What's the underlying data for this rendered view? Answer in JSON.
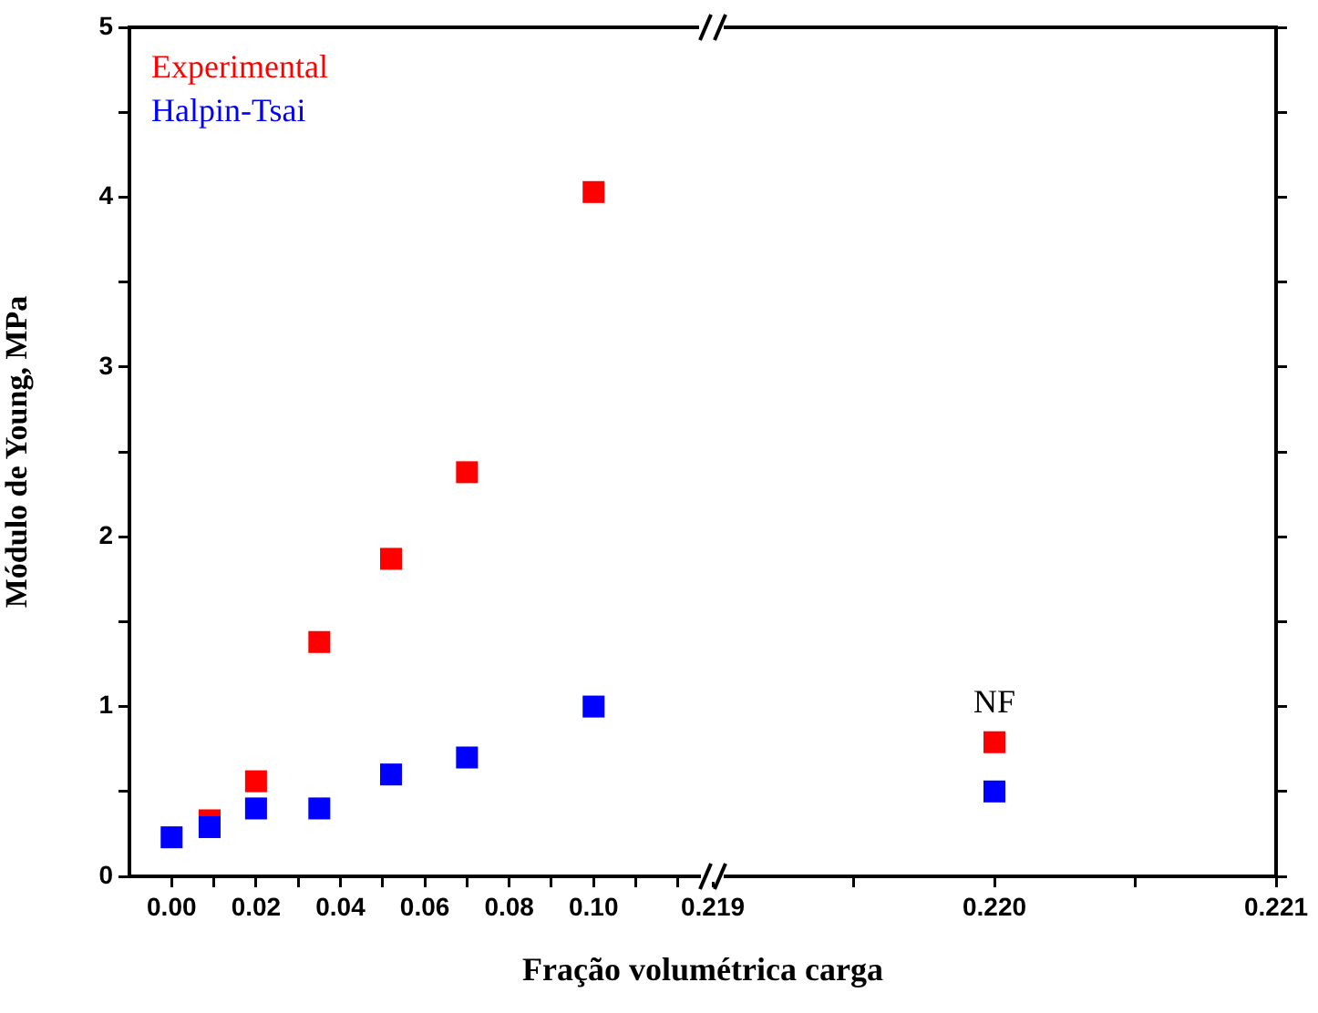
{
  "chart_data": [
    {
      "type": "scatter",
      "xlabel": "Fração volumétrica carga",
      "ylabel": "Módulo de Young, MPa",
      "legend": "top left",
      "marker": "square",
      "xlim": [
        -0.01,
        0.125
      ],
      "xticks": [
        {
          "value": 0,
          "label": "0.00"
        },
        {
          "value": 0.01,
          "label": null
        },
        {
          "value": 0.02,
          "label": "0.02"
        },
        {
          "value": 0.03,
          "label": null
        },
        {
          "value": 0.04,
          "label": "0.04"
        },
        {
          "value": 0.05,
          "label": null
        },
        {
          "value": 0.06,
          "label": "0.06"
        },
        {
          "value": 0.07,
          "label": null
        },
        {
          "value": 0.08,
          "label": "0.08"
        },
        {
          "value": 0.09,
          "label": null
        },
        {
          "value": 0.1,
          "label": "0.10"
        },
        {
          "value": 0.11,
          "label": null
        },
        {
          "value": 0.12,
          "label": null
        }
      ],
      "ylim": [
        0,
        5
      ],
      "yticks": [
        0,
        {
          "value": 0.5,
          "label": null
        },
        1,
        {
          "value": 1.5,
          "label": null
        },
        2,
        {
          "value": 2.5,
          "label": null
        },
        3,
        {
          "value": 3.5,
          "label": null
        },
        4,
        {
          "value": 4.5,
          "label": null
        },
        5
      ],
      "series": [
        {
          "name": "Experimental",
          "color": "#ff0000",
          "x": [
            0.009,
            0.02,
            0.035,
            0.052,
            0.07,
            0.1
          ],
          "values": [
            0.33,
            0.56,
            1.38,
            1.87,
            2.38,
            4.03
          ]
        },
        {
          "name": "Halpin-Tsai",
          "color": "#0000ff",
          "x": [
            0,
            0.009,
            0.02,
            0.035,
            0.052,
            0.07,
            0.1
          ],
          "values": [
            0.23,
            0.29,
            0.4,
            0.4,
            0.6,
            0.7,
            1.0
          ]
        }
      ]
    },
    {
      "type": "scatter",
      "marker": "square",
      "tick_labels": "x",
      "annotations": [
        {
          "text": "NF",
          "x": 0.22,
          "y": 0.79
        }
      ],
      "xlim": [
        0.219,
        0.221
      ],
      "xticks": [
        0.219,
        {
          "value": 0.2195,
          "label": null
        },
        {
          "value": 0.22,
          "label": "0.220"
        },
        {
          "value": 0.2205,
          "label": null
        },
        0.221
      ],
      "ylim": [
        0,
        5
      ],
      "yticks": [
        0,
        {
          "value": 0.5,
          "label": null
        },
        1,
        {
          "value": 1.5,
          "label": null
        },
        2,
        {
          "value": 2.5,
          "label": null
        },
        3,
        {
          "value": 3.5,
          "label": null
        },
        4,
        {
          "value": 4.5,
          "label": null
        },
        5
      ],
      "series": [
        {
          "color": "#ff0000",
          "x": [
            0.22
          ],
          "values": [
            0.79
          ]
        },
        {
          "color": "#0000ff",
          "x": [
            0.22
          ],
          "values": [
            0.5
          ]
        }
      ]
    }
  ]
}
